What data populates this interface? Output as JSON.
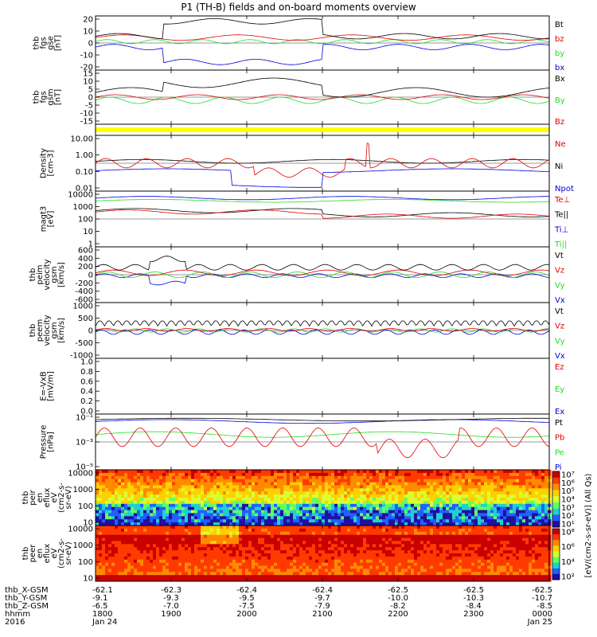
{
  "title": "P1 (TH-B) fields and on-board moments overview",
  "colors": {
    "black": "#000000",
    "red": "#e00000",
    "green": "#22dd22",
    "blue": "#0000dd",
    "yellow": "#ffff00"
  },
  "chart_data": {
    "type": "line",
    "x_ticks": [
      "1800",
      "1900",
      "2000",
      "2100",
      "2200",
      "2300",
      "0000"
    ],
    "x_tick_dates": [
      "Jan 24",
      "",
      "",
      "",
      "",
      "",
      "Jan 25"
    ],
    "panels": [
      {
        "id": "fgs_gse",
        "ylabel": [
          "thb",
          "fgs",
          "gse",
          "[nT]"
        ],
        "ylim": [
          -20,
          20
        ],
        "yticks": [
          "20",
          "10",
          "0",
          "-10",
          "-20"
        ],
        "legend": [
          {
            "text": "Bt",
            "color": "black"
          },
          {
            "text": "bz",
            "color": "red"
          },
          {
            "text": "by",
            "color": "green"
          },
          {
            "text": "bx",
            "color": "blue"
          }
        ]
      },
      {
        "id": "fgs_gsm",
        "ylabel": [
          "thb",
          "fgs",
          "gsm",
          "[nT]"
        ],
        "ylim": [
          -17,
          17
        ],
        "yticks": [
          "15",
          "10",
          "5",
          "0",
          "-5",
          "-10",
          "-15"
        ],
        "legend": [
          {
            "text": "Bx",
            "color": "black"
          },
          {
            "text": "By",
            "color": "green"
          },
          {
            "text": "Bz",
            "color": "red"
          }
        ]
      },
      {
        "id": "flag",
        "ylabel": [],
        "ylim": [
          0,
          1
        ],
        "yticks": [],
        "legend": []
      },
      {
        "id": "density",
        "ylabel": [
          "Density",
          "[cm-3]"
        ],
        "ylim": [
          0.01,
          10
        ],
        "yticks": [
          "10.00",
          "1.00",
          "0.10",
          "0.01"
        ],
        "legend": [
          {
            "text": "Ne",
            "color": "red"
          },
          {
            "text": "Ni",
            "color": "black"
          },
          {
            "text": "Npot",
            "color": "blue"
          }
        ]
      },
      {
        "id": "temp",
        "ylabel": [
          "magt3",
          "[eV]"
        ],
        "ylim": [
          1,
          10000
        ],
        "yticks": [
          "10000",
          "1000",
          "100",
          "10",
          "1"
        ],
        "legend": [
          {
            "text": "Te⊥",
            "color": "red"
          },
          {
            "text": "Te||",
            "color": "black"
          },
          {
            "text": "Ti⊥",
            "color": "blue"
          },
          {
            "text": "Ti||",
            "color": "green"
          }
        ]
      },
      {
        "id": "peim_vel",
        "ylabel": [
          "thb",
          "peim",
          "velocity",
          "gsm",
          "[km/s]"
        ],
        "ylim": [
          -600,
          600
        ],
        "yticks": [
          "600",
          "400",
          "200",
          "0",
          "-200",
          "-400",
          "-600"
        ],
        "legend": [
          {
            "text": "Vt",
            "color": "black"
          },
          {
            "text": "Vz",
            "color": "red"
          },
          {
            "text": "Vy",
            "color": "green"
          },
          {
            "text": "Vx",
            "color": "blue"
          }
        ]
      },
      {
        "id": "peem_vel",
        "ylabel": [
          "thb",
          "peem",
          "velocity",
          "gsm",
          "[km/s]"
        ],
        "ylim": [
          -1000,
          1000
        ],
        "yticks": [
          "1000",
          "500",
          "0",
          "-500",
          "-1000"
        ],
        "legend": [
          {
            "text": "Vt",
            "color": "black"
          },
          {
            "text": "Vz",
            "color": "red"
          },
          {
            "text": "Vy",
            "color": "green"
          },
          {
            "text": "Vx",
            "color": "blue"
          }
        ]
      },
      {
        "id": "efield",
        "ylabel": [
          "E=-VxB",
          "[mV/m]"
        ],
        "ylim": [
          0,
          1
        ],
        "yticks": [
          "1.0",
          "0.8",
          "0.6",
          "0.4",
          "0.2",
          "0.0"
        ],
        "legend": [
          {
            "text": "Ez",
            "color": "red"
          },
          {
            "text": "Ey",
            "color": "green"
          },
          {
            "text": "Ex",
            "color": "blue"
          }
        ]
      },
      {
        "id": "pressure",
        "ylabel": [
          "Pressure",
          "[nPa]"
        ],
        "ylim": [
          -6,
          0
        ],
        "yticks": [
          "10⁻¹",
          "10⁻³",
          "10⁻⁵"
        ],
        "legend": [
          {
            "text": "Pt",
            "color": "black"
          },
          {
            "text": "Pb",
            "color": "red"
          },
          {
            "text": "Pe",
            "color": "green"
          },
          {
            "text": "Pi",
            "color": "blue"
          }
        ]
      },
      {
        "id": "peir",
        "ylabel": [
          "thb",
          "peir",
          "en",
          "eflux",
          "eV",
          "(cm2-s-",
          "sr-eV)"
        ],
        "ylim": [
          5,
          20000
        ],
        "yticks": [
          "10000",
          "1000",
          "100",
          "10"
        ],
        "legend": []
      },
      {
        "id": "peer",
        "ylabel": [
          "thb",
          "peer",
          "en",
          "eflux",
          "eV",
          "(cm2-s-",
          "sr-eV)"
        ],
        "ylim": [
          5,
          20000
        ],
        "yticks": [
          "10000",
          "1000",
          "100",
          "10"
        ],
        "legend": []
      }
    ],
    "colorbar": {
      "label": "[eV/(cm2-s-sr-eV)] (All Qs)",
      "ticks_upper": [
        "10⁷",
        "10⁶",
        "10⁵",
        "10⁴",
        "10³",
        "10²",
        "10¹"
      ],
      "ticks_lower": [
        "10⁸",
        "10⁶",
        "10⁴",
        "10²"
      ]
    },
    "ephemeris": {
      "labels": [
        "thb_X-GSM",
        "thb_Y-GSM",
        "thb_Z-GSM",
        "hhmm",
        "2016"
      ],
      "columns": [
        [
          "-62.1",
          "-9.1",
          "-6.5",
          "1800",
          "Jan 24"
        ],
        [
          "-62.3",
          "-9.3",
          "-7.0",
          "1900",
          ""
        ],
        [
          "-62.4",
          "-9.5",
          "-7.5",
          "2000",
          ""
        ],
        [
          "-62.4",
          "-9.7",
          "-7.9",
          "2100",
          ""
        ],
        [
          "-62.5",
          "-10.0",
          "-8.2",
          "2200",
          ""
        ],
        [
          "-62.5",
          "-10.3",
          "-8.4",
          "2300",
          ""
        ],
        [
          "-62.5",
          "-10.7",
          "-8.5",
          "0000",
          "Jan 25"
        ]
      ]
    }
  }
}
